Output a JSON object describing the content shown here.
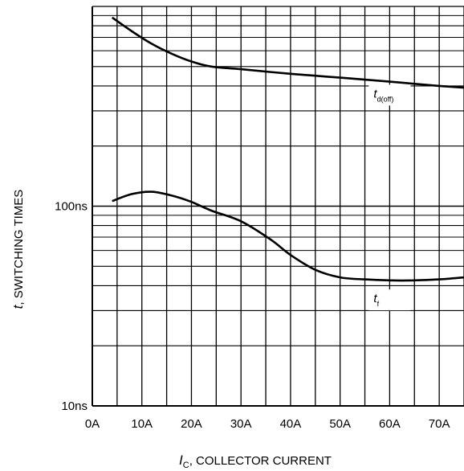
{
  "chart_data": {
    "type": "line",
    "title": "",
    "x_axis": {
      "label_symbol": "I",
      "label_subscript": "C",
      "label_text": ", COLLECTOR CURRENT",
      "range": [
        0,
        75
      ],
      "unit": "A",
      "ticks": [
        {
          "value": 0,
          "label": "0A"
        },
        {
          "value": 10,
          "label": "10A"
        },
        {
          "value": 20,
          "label": "20A"
        },
        {
          "value": 30,
          "label": "30A"
        },
        {
          "value": 40,
          "label": "40A"
        },
        {
          "value": 50,
          "label": "50A"
        },
        {
          "value": 60,
          "label": "60A"
        },
        {
          "value": 70,
          "label": "70A"
        }
      ],
      "grid_step": 5
    },
    "y_axis": {
      "label_symbol": "t",
      "label_text": ", SWITCHING TIMES",
      "scale": "log",
      "range_ns": [
        10,
        1000
      ],
      "ticks": [
        {
          "value": 10,
          "label": "10ns"
        },
        {
          "value": 100,
          "label": "100ns"
        }
      ]
    },
    "grid": true,
    "series": [
      {
        "name_main": "t",
        "name_sub": "d(off)",
        "label_x": 60,
        "label_y": 350,
        "x": [
          4,
          8,
          12,
          16,
          20,
          24,
          30,
          40,
          50,
          60,
          70,
          75
        ],
        "y": [
          880,
          750,
          650,
          580,
          530,
          500,
          485,
          460,
          440,
          420,
          400,
          392
        ]
      },
      {
        "name_main": "t",
        "name_sub": "f",
        "label_x": 60,
        "label_y": 33,
        "x": [
          4,
          8,
          12,
          16,
          20,
          24,
          30,
          36,
          40,
          45,
          50,
          55,
          60,
          65,
          70,
          75
        ],
        "y": [
          106,
          115,
          118,
          113,
          105,
          95,
          84,
          68,
          57,
          48,
          44,
          43,
          42.5,
          42.5,
          43,
          44
        ]
      }
    ]
  }
}
